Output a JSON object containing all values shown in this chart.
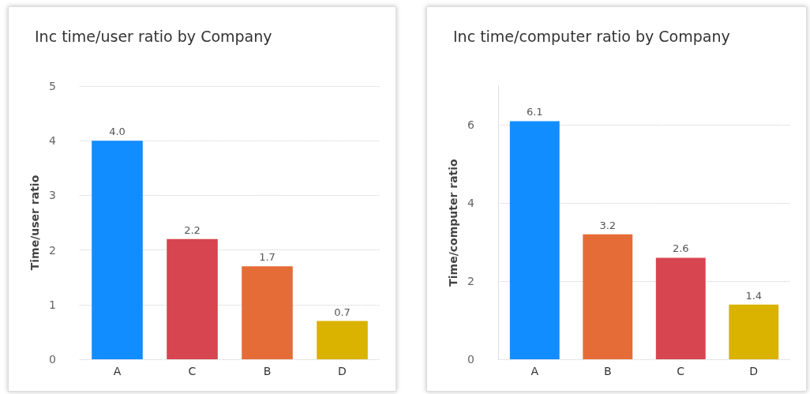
{
  "chart_data": [
    {
      "type": "bar",
      "title": "Inc time/user ratio by Company",
      "ylabel": "Time/user ratio",
      "categories": [
        "A",
        "C",
        "B",
        "D"
      ],
      "values": [
        4.0,
        2.2,
        1.7,
        0.7
      ],
      "value_labels": [
        "4.0",
        "2.2",
        "1.7",
        "0.7"
      ],
      "colors": [
        "#118dff",
        "#d64550",
        "#e66c37",
        "#d9b300"
      ],
      "ylim": [
        0,
        5
      ],
      "yticks": [
        0,
        1,
        2,
        3,
        4,
        5
      ],
      "grid": "y"
    },
    {
      "type": "bar",
      "title": "Inc time/computer ratio by Company",
      "ylabel": "Time/computer ratio",
      "categories": [
        "A",
        "B",
        "C",
        "D"
      ],
      "values": [
        6.1,
        3.2,
        2.6,
        1.4
      ],
      "data_labels": true,
      "colors": [
        "#118dff",
        "#e66c37",
        "#d64550",
        "#d9b300"
      ],
      "ylim": [
        0,
        7
      ],
      "yticks": [
        0,
        2,
        4,
        6
      ],
      "grid": "y"
    }
  ]
}
